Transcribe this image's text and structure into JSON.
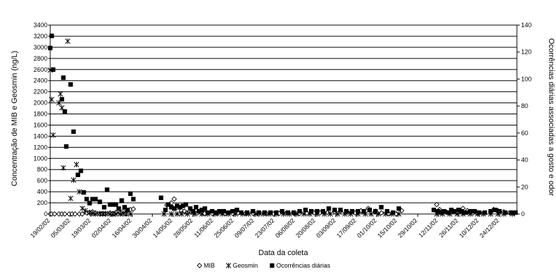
{
  "chart_data": {
    "type": "scatter",
    "title": "",
    "xlabel": "Data da coleta",
    "ylabel_left": "Concentração de MIB e Geosmin (ng/L)",
    "ylabel_right": "Ocorrências diárias associadas a gosto e odor",
    "x_ticks": [
      "19/02/02",
      "05/03/02",
      "19/03/02",
      "02/04/02",
      "16/04/02",
      "30/04/02",
      "14/05/02",
      "28/05/02",
      "11/06/02",
      "25/06/02",
      "09/07/02",
      "23/07/02",
      "06/08/02",
      "20/08/02",
      "03/09/02",
      "17/09/02",
      "01/10/02",
      "15/10/02",
      "29/10/02",
      "12/11/02",
      "26/11/02",
      "10/12/02",
      "24/12/02"
    ],
    "xlim": [
      "19/02/02",
      "05/01/03"
    ],
    "ylim_left": [
      0,
      3400
    ],
    "y_ticks_left": [
      0,
      200,
      400,
      600,
      800,
      1000,
      1200,
      1400,
      1600,
      1800,
      2000,
      2200,
      2400,
      2600,
      2800,
      3000,
      3200,
      3400
    ],
    "ylim_right": [
      0,
      140
    ],
    "y_ticks_right": [
      0,
      20,
      40,
      60,
      80,
      100,
      120,
      140
    ],
    "grid": "horizontal",
    "legend_position": "bottom",
    "series": [
      {
        "name": "MIB",
        "marker": "diamond",
        "axis": "left",
        "points": [
          [
            "19/02/02",
            0
          ],
          [
            "20/02/02",
            0
          ],
          [
            "22/02/02",
            0
          ],
          [
            "25/02/02",
            0
          ],
          [
            "27/02/02",
            0
          ],
          [
            "01/03/02",
            0
          ],
          [
            "04/03/02",
            0
          ],
          [
            "06/03/02",
            0
          ],
          [
            "08/03/02",
            0
          ],
          [
            "11/03/02",
            0
          ],
          [
            "13/03/02",
            0
          ],
          [
            "16/03/02",
            20
          ],
          [
            "18/03/02",
            30
          ],
          [
            "20/03/02",
            40
          ],
          [
            "22/03/02",
            20
          ],
          [
            "25/03/02",
            0
          ],
          [
            "27/03/02",
            0
          ],
          [
            "29/03/02",
            0
          ],
          [
            "01/04/02",
            20
          ],
          [
            "03/04/02",
            10
          ],
          [
            "05/04/02",
            30
          ],
          [
            "08/04/02",
            20
          ],
          [
            "10/04/02",
            50
          ],
          [
            "12/04/02",
            0
          ],
          [
            "15/04/02",
            80
          ],
          [
            "17/04/02",
            90
          ],
          [
            "10/05/02",
            160
          ],
          [
            "13/05/02",
            200
          ],
          [
            "15/05/02",
            270
          ],
          [
            "17/05/02",
            120
          ],
          [
            "20/05/02",
            60
          ],
          [
            "22/05/02",
            50
          ],
          [
            "24/05/02",
            20
          ],
          [
            "27/05/02",
            30
          ],
          [
            "29/05/02",
            20
          ],
          [
            "31/05/02",
            20
          ],
          [
            "03/06/02",
            10
          ],
          [
            "05/06/02",
            10
          ],
          [
            "10/06/02",
            10
          ],
          [
            "14/06/02",
            10
          ],
          [
            "19/06/02",
            10
          ],
          [
            "24/06/02",
            10
          ],
          [
            "28/06/02",
            20
          ],
          [
            "03/07/02",
            10
          ],
          [
            "08/07/02",
            10
          ],
          [
            "12/07/02",
            0
          ],
          [
            "17/07/02",
            10
          ],
          [
            "22/07/02",
            0
          ],
          [
            "26/07/02",
            10
          ],
          [
            "31/07/02",
            20
          ],
          [
            "05/08/02",
            10
          ],
          [
            "09/08/02",
            10
          ],
          [
            "14/08/02",
            20
          ],
          [
            "19/08/02",
            20
          ],
          [
            "23/08/02",
            20
          ],
          [
            "28/08/02",
            30
          ],
          [
            "02/09/02",
            40
          ],
          [
            "06/09/02",
            50
          ],
          [
            "11/09/02",
            30
          ],
          [
            "16/09/02",
            20
          ],
          [
            "20/09/02",
            60
          ],
          [
            "25/09/02",
            100
          ],
          [
            "30/09/02",
            50
          ],
          [
            "04/10/02",
            20
          ],
          [
            "09/10/02",
            10
          ],
          [
            "14/10/02",
            0
          ],
          [
            "18/10/02",
            60
          ],
          [
            "11/11/02",
            170
          ],
          [
            "13/11/02",
            80
          ],
          [
            "15/11/02",
            40
          ],
          [
            "18/11/02",
            30
          ],
          [
            "20/11/02",
            20
          ],
          [
            "22/11/02",
            50
          ],
          [
            "25/11/02",
            30
          ],
          [
            "27/11/02",
            50
          ],
          [
            "29/11/02",
            100
          ],
          [
            "02/12/02",
            60
          ],
          [
            "04/12/02",
            30
          ],
          [
            "06/12/02",
            20
          ],
          [
            "09/12/02",
            10
          ],
          [
            "13/12/02",
            20
          ],
          [
            "20/12/02",
            80
          ],
          [
            "23/12/02",
            60
          ],
          [
            "27/12/02",
            40
          ],
          [
            "31/12/02",
            20
          ],
          [
            "03/01/03",
            10
          ]
        ]
      },
      {
        "name": "Geosmin",
        "marker": "star",
        "axis": "left",
        "points": [
          [
            "19/02/02",
            2590
          ],
          [
            "20/02/02",
            2060
          ],
          [
            "21/02/02",
            1420
          ],
          [
            "25/02/02",
            2000
          ],
          [
            "26/02/02",
            2160
          ],
          [
            "27/02/02",
            1910
          ],
          [
            "28/02/02",
            830
          ],
          [
            "03/03/02",
            3110
          ],
          [
            "05/03/02",
            280
          ],
          [
            "07/03/02",
            610
          ],
          [
            "09/03/02",
            890
          ],
          [
            "11/03/02",
            400
          ],
          [
            "13/03/02",
            100
          ],
          [
            "15/03/02",
            60
          ],
          [
            "18/03/02",
            20
          ],
          [
            "20/03/02",
            10
          ],
          [
            "22/03/02",
            0
          ],
          [
            "25/03/02",
            10
          ],
          [
            "27/03/02",
            0
          ],
          [
            "29/03/02",
            10
          ],
          [
            "01/04/02",
            0
          ],
          [
            "03/04/02",
            0
          ],
          [
            "05/04/02",
            0
          ],
          [
            "08/04/02",
            0
          ],
          [
            "10/04/02",
            10
          ],
          [
            "12/04/02",
            0
          ],
          [
            "15/04/02",
            0
          ],
          [
            "08/05/02",
            0
          ],
          [
            "13/05/02",
            0
          ],
          [
            "17/05/02",
            0
          ],
          [
            "20/05/02",
            0
          ],
          [
            "24/05/02",
            0
          ],
          [
            "29/05/02",
            0
          ],
          [
            "03/06/02",
            0
          ],
          [
            "07/06/02",
            0
          ],
          [
            "12/06/02",
            0
          ],
          [
            "17/06/02",
            0
          ],
          [
            "21/06/02",
            0
          ],
          [
            "26/06/02",
            0
          ],
          [
            "01/07/02",
            0
          ],
          [
            "05/07/02",
            0
          ],
          [
            "10/07/02",
            0
          ],
          [
            "15/07/02",
            0
          ],
          [
            "19/07/02",
            0
          ],
          [
            "24/07/02",
            0
          ],
          [
            "29/07/02",
            0
          ],
          [
            "02/08/02",
            0
          ],
          [
            "07/08/02",
            0
          ],
          [
            "12/08/02",
            0
          ],
          [
            "16/08/02",
            0
          ],
          [
            "21/08/02",
            0
          ],
          [
            "26/08/02",
            0
          ],
          [
            "30/08/02",
            0
          ],
          [
            "04/09/02",
            0
          ],
          [
            "09/09/02",
            0
          ],
          [
            "13/09/02",
            0
          ],
          [
            "18/09/02",
            0
          ],
          [
            "23/09/02",
            0
          ],
          [
            "27/09/02",
            0
          ],
          [
            "02/10/02",
            0
          ],
          [
            "07/10/02",
            0
          ],
          [
            "11/10/02",
            0
          ],
          [
            "16/10/02",
            0
          ],
          [
            "11/11/02",
            0
          ],
          [
            "15/11/02",
            0
          ],
          [
            "20/11/02",
            0
          ],
          [
            "25/11/02",
            0
          ],
          [
            "29/11/02",
            0
          ],
          [
            "04/12/02",
            0
          ],
          [
            "09/12/02",
            0
          ],
          [
            "13/12/02",
            0
          ],
          [
            "18/12/02",
            0
          ],
          [
            "23/12/02",
            0
          ],
          [
            "27/12/02",
            0
          ],
          [
            "02/01/03",
            0
          ]
        ]
      },
      {
        "name": "Ocorrências diárias",
        "marker": "square",
        "axis": "right",
        "points": [
          [
            "19/02/02",
            123
          ],
          [
            "20/02/02",
            132
          ],
          [
            "21/02/02",
            107
          ],
          [
            "27/02/02",
            85
          ],
          [
            "28/02/02",
            101
          ],
          [
            "01/03/02",
            76
          ],
          [
            "02/03/02",
            50
          ],
          [
            "05/03/02",
            96
          ],
          [
            "07/03/02",
            61
          ],
          [
            "10/03/02",
            29
          ],
          [
            "12/03/02",
            32
          ],
          [
            "14/03/02",
            16
          ],
          [
            "16/03/02",
            11
          ],
          [
            "18/03/02",
            8
          ],
          [
            "20/03/02",
            11
          ],
          [
            "22/03/02",
            11
          ],
          [
            "25/03/02",
            9
          ],
          [
            "28/03/02",
            5
          ],
          [
            "30/03/02",
            18
          ],
          [
            "01/04/02",
            7
          ],
          [
            "03/04/02",
            7
          ],
          [
            "05/04/02",
            7
          ],
          [
            "07/04/02",
            4
          ],
          [
            "09/04/02",
            10
          ],
          [
            "11/04/02",
            5
          ],
          [
            "13/04/02",
            3
          ],
          [
            "15/04/02",
            15
          ],
          [
            "17/04/02",
            11
          ],
          [
            "06/05/02",
            12
          ],
          [
            "09/05/02",
            3
          ],
          [
            "11/05/02",
            7
          ],
          [
            "13/05/02",
            5
          ],
          [
            "15/05/02",
            4
          ],
          [
            "17/05/02",
            6
          ],
          [
            "19/05/02",
            5
          ],
          [
            "21/05/02",
            6
          ],
          [
            "23/05/02",
            7
          ],
          [
            "26/05/02",
            4
          ],
          [
            "28/05/02",
            2
          ],
          [
            "30/05/02",
            5
          ],
          [
            "01/06/02",
            2
          ],
          [
            "03/06/02",
            3
          ],
          [
            "05/06/02",
            4
          ],
          [
            "07/06/02",
            1
          ],
          [
            "10/06/02",
            2
          ],
          [
            "13/06/02",
            1
          ],
          [
            "15/06/02",
            2
          ],
          [
            "18/06/02",
            2
          ],
          [
            "21/06/02",
            1
          ],
          [
            "24/06/02",
            2
          ],
          [
            "27/06/02",
            3
          ],
          [
            "30/06/02",
            1
          ],
          [
            "04/07/02",
            1
          ],
          [
            "08/07/02",
            2
          ],
          [
            "12/07/02",
            1
          ],
          [
            "16/07/02",
            1
          ],
          [
            "20/07/02",
            1
          ],
          [
            "24/07/02",
            1
          ],
          [
            "28/07/02",
            2
          ],
          [
            "01/08/02",
            1
          ],
          [
            "05/08/02",
            1
          ],
          [
            "09/08/02",
            2
          ],
          [
            "13/08/02",
            3
          ],
          [
            "17/08/02",
            2
          ],
          [
            "21/08/02",
            2
          ],
          [
            "25/08/02",
            2
          ],
          [
            "29/08/02",
            4
          ],
          [
            "02/09/02",
            3
          ],
          [
            "06/09/02",
            3
          ],
          [
            "10/09/02",
            2
          ],
          [
            "14/09/02",
            2
          ],
          [
            "18/09/02",
            2
          ],
          [
            "22/09/02",
            2
          ],
          [
            "26/09/02",
            3
          ],
          [
            "30/09/02",
            2
          ],
          [
            "04/10/02",
            5
          ],
          [
            "08/10/02",
            2
          ],
          [
            "12/10/02",
            1
          ],
          [
            "16/10/02",
            4
          ],
          [
            "09/11/02",
            3
          ],
          [
            "12/11/02",
            2
          ],
          [
            "14/11/02",
            1
          ],
          [
            "16/11/02",
            2
          ],
          [
            "19/11/02",
            1
          ],
          [
            "21/11/02",
            3
          ],
          [
            "23/11/02",
            2
          ],
          [
            "26/11/02",
            3
          ],
          [
            "28/11/02",
            2
          ],
          [
            "01/12/02",
            1
          ],
          [
            "04/12/02",
            2
          ],
          [
            "07/12/02",
            2
          ],
          [
            "10/12/02",
            1
          ],
          [
            "14/12/02",
            1
          ],
          [
            "18/12/02",
            2
          ],
          [
            "21/12/02",
            3
          ],
          [
            "24/12/02",
            2
          ],
          [
            "28/12/02",
            1
          ],
          [
            "01/01/03",
            1
          ],
          [
            "04/01/03",
            1
          ]
        ]
      }
    ]
  }
}
